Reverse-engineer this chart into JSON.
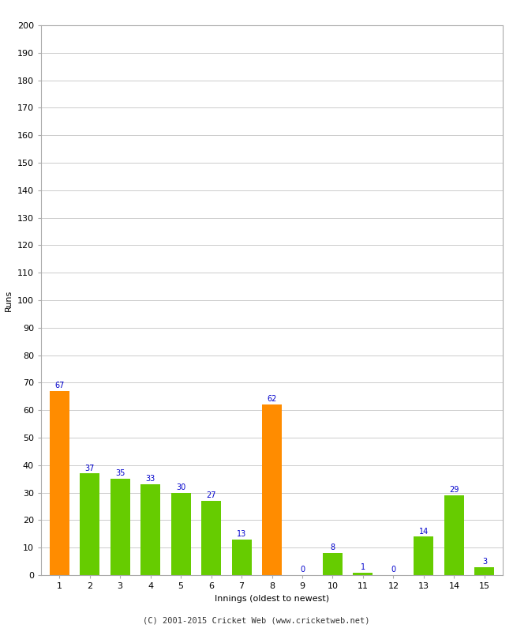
{
  "xlabel": "Innings (oldest to newest)",
  "ylabel": "Runs",
  "categories": [
    "1",
    "2",
    "3",
    "4",
    "5",
    "6",
    "7",
    "8",
    "9",
    "10",
    "11",
    "12",
    "13",
    "14",
    "15"
  ],
  "values": [
    67,
    37,
    35,
    33,
    30,
    27,
    13,
    62,
    0,
    8,
    1,
    0,
    14,
    29,
    3
  ],
  "bar_colors": [
    "#ff8c00",
    "#66cc00",
    "#66cc00",
    "#66cc00",
    "#66cc00",
    "#66cc00",
    "#66cc00",
    "#ff8c00",
    "#66cc00",
    "#66cc00",
    "#66cc00",
    "#66cc00",
    "#66cc00",
    "#66cc00",
    "#66cc00"
  ],
  "ylim": [
    0,
    200
  ],
  "yticks": [
    0,
    10,
    20,
    30,
    40,
    50,
    60,
    70,
    80,
    90,
    100,
    110,
    120,
    130,
    140,
    150,
    160,
    170,
    180,
    190,
    200
  ],
  "label_color": "#0000cc",
  "label_fontsize": 7,
  "axis_tick_fontsize": 8,
  "axis_label_fontsize": 8,
  "footer": "(C) 2001-2015 Cricket Web (www.cricketweb.net)",
  "footer_fontsize": 7.5,
  "background_color": "#ffffff",
  "grid_color": "#cccccc",
  "bar_width": 0.65
}
